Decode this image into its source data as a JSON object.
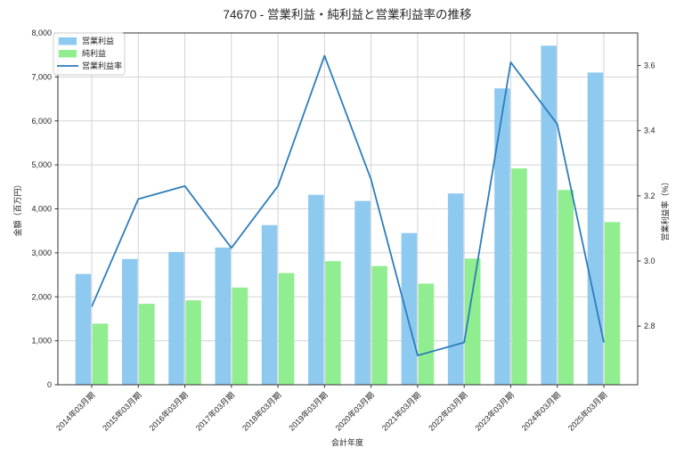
{
  "title": "74670 - 営業利益・純利益と営業利益率の推移",
  "colors": {
    "bar_operating_profit": "#8ec9f0",
    "bar_net_profit": "#90ee90",
    "line_margin": "#2d7dbb",
    "grid": "#d3d3d3",
    "plot_border": "#333333",
    "tick_text": "#262626",
    "legend_border": "#cccccc",
    "background": "#ffffff"
  },
  "chart_data": {
    "type": "bar",
    "subtype": "grouped-bars-with-line",
    "title": "74670 - 営業利益・純利益と営業利益率の推移",
    "xlabel": "会計年度",
    "ylabel_left": "金額（百万円）",
    "ylabel_right": "営業利益率（%）",
    "categories": [
      "2014年03月期",
      "2015年03月期",
      "2016年03月期",
      "2017年03月期",
      "2018年03月期",
      "2019年03月期",
      "2020年03月期",
      "2021年03月期",
      "2022年03月期",
      "2023年03月期",
      "2024年03月期",
      "2025年03月期"
    ],
    "series": [
      {
        "name": "営業利益",
        "type": "bar",
        "axis": "left",
        "color": "#8ec9f0",
        "values": [
          2520,
          2860,
          3020,
          3120,
          3630,
          4320,
          4180,
          3450,
          4350,
          6740,
          7710,
          7100
        ]
      },
      {
        "name": "純利益",
        "type": "bar",
        "axis": "left",
        "color": "#90ee90",
        "values": [
          1390,
          1840,
          1920,
          2210,
          2540,
          2810,
          2700,
          2300,
          2870,
          4920,
          4430,
          3700
        ]
      },
      {
        "name": "営業利益率",
        "type": "line",
        "axis": "right",
        "color": "#2d7dbb",
        "values": [
          2.86,
          3.19,
          3.23,
          3.04,
          3.23,
          3.63,
          3.25,
          2.71,
          2.75,
          3.61,
          3.42,
          2.75
        ]
      }
    ],
    "ylim_left": [
      0,
      8000
    ],
    "yticks_left": [
      0,
      1000,
      2000,
      3000,
      4000,
      5000,
      6000,
      7000,
      8000
    ],
    "ytick_labels_left": [
      "0",
      "1,000",
      "2,000",
      "3,000",
      "4,000",
      "5,000",
      "6,000",
      "7,000",
      "8,000"
    ],
    "ylim_right": [
      2.62,
      3.7
    ],
    "yticks_right": [
      2.8,
      3.0,
      3.2,
      3.4,
      3.6
    ],
    "grid": true,
    "legend_position": "upper-left",
    "x_tick_rotation": 45
  }
}
